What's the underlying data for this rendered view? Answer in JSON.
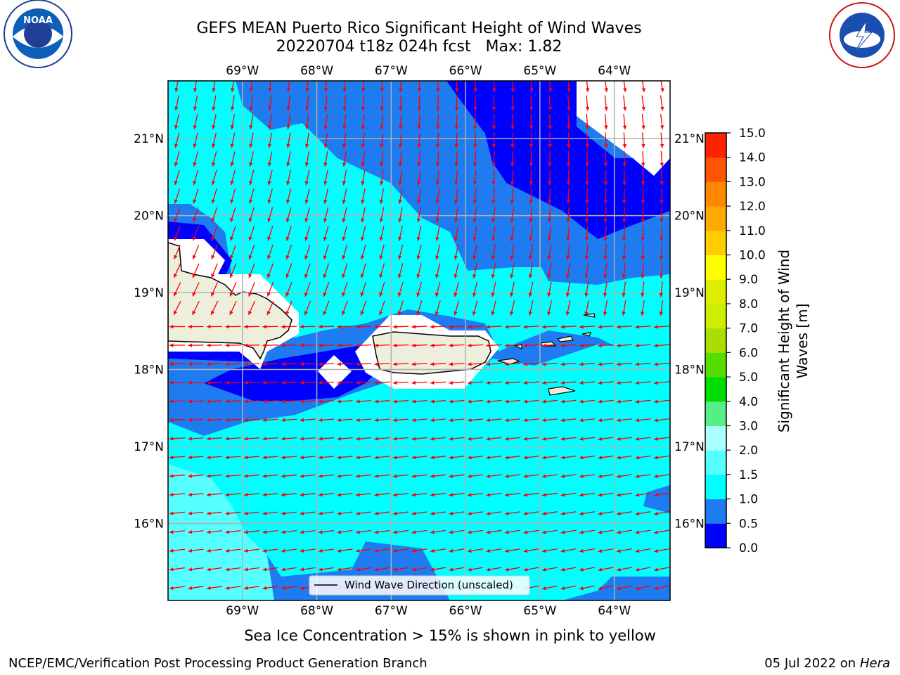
{
  "title": {
    "line1": "GEFS MEAN Puerto Rico Significant Height of Wind Waves",
    "line2": "20220704 t18z 024h fcst   Max: 1.82"
  },
  "map": {
    "lon_ticks": [
      "69°W",
      "68°W",
      "67°W",
      "66°W",
      "65°W",
      "64°W"
    ],
    "lat_ticks": [
      "21°N",
      "20°N",
      "19°N",
      "18°N",
      "17°N",
      "16°N"
    ],
    "lon_values": [
      -69,
      -68,
      -67,
      -66,
      -65,
      -64
    ],
    "lat_values": [
      21,
      20,
      19,
      18,
      17,
      16
    ],
    "lon_range": [
      -70,
      -63.25
    ],
    "lat_range": [
      15.0,
      21.75
    ],
    "legend_label": "Wind Wave Direction (unscaled)",
    "grid": true
  },
  "colorbar": {
    "label": "Significant Height of Wind Waves [m]",
    "ticks": [
      "0.0",
      "0.5",
      "1.0",
      "1.5",
      "2.0",
      "3.0",
      "4.0",
      "5.0",
      "6.0",
      "7.0",
      "8.0",
      "9.0",
      "10.0",
      "11.0",
      "12.0",
      "13.0",
      "14.0",
      "15.0"
    ],
    "colors": [
      "#0000ff",
      "#1e7cf0",
      "#00ffff",
      "#55ffff",
      "#aaffff",
      "#55ee88",
      "#00dd00",
      "#55dd00",
      "#aadd00",
      "#ccee00",
      "#ddee00",
      "#ffff00",
      "#ffcc00",
      "#ffaa00",
      "#ff8800",
      "#ff5500",
      "#ff2200",
      "#ff0000"
    ]
  },
  "annotation": "Sea Ice Concentration > 15% is shown in pink to yellow",
  "footer": {
    "left": "NCEP/EMC/Verification Post Processing Product Generation Branch",
    "right_date": "05 Jul 2022 on ",
    "right_host": "Hera"
  },
  "logos": {
    "noaa": "NOAA",
    "nws": "NATIONAL WEATHER SERVICE"
  },
  "colors": {
    "arrow": "#ff0000",
    "land": "#eeeedd",
    "grid": "#b0b0b0"
  }
}
